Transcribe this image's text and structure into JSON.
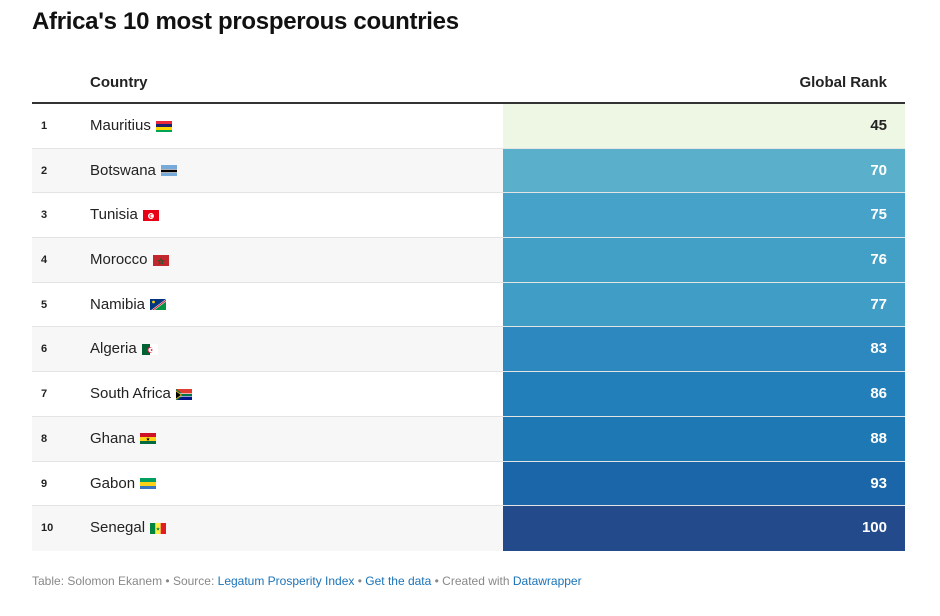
{
  "title": "Africa's 10 most prosperous countries",
  "columns": {
    "country": "Country",
    "rank": "Global Rank"
  },
  "chart_data": {
    "type": "table",
    "columns": [
      "",
      "Country",
      "Global Rank"
    ],
    "rows": [
      {
        "num": "1",
        "country": "Mauritius",
        "flag": "mauritius-flag-icon",
        "rank": "45",
        "color": "#eef6e4",
        "text_color": "#222222"
      },
      {
        "num": "2",
        "country": "Botswana",
        "flag": "botswana-flag-icon",
        "rank": "70",
        "color": "#5ab0cb",
        "text_color": "#ffffff"
      },
      {
        "num": "3",
        "country": "Tunisia",
        "flag": "tunisia-flag-icon",
        "rank": "75",
        "color": "#46a2c9",
        "text_color": "#ffffff"
      },
      {
        "num": "4",
        "country": "Morocco",
        "flag": "morocco-flag-icon",
        "rank": "76",
        "color": "#42a0c7",
        "text_color": "#ffffff"
      },
      {
        "num": "5",
        "country": "Namibia",
        "flag": "namibia-flag-icon",
        "rank": "77",
        "color": "#3f9dc6",
        "text_color": "#ffffff"
      },
      {
        "num": "6",
        "country": "Algeria",
        "flag": "algeria-flag-icon",
        "rank": "83",
        "color": "#2c88bf",
        "text_color": "#ffffff"
      },
      {
        "num": "7",
        "country": "South Africa",
        "flag": "south-africa-flag-icon",
        "rank": "86",
        "color": "#227fb9",
        "text_color": "#ffffff"
      },
      {
        "num": "8",
        "country": "Ghana",
        "flag": "ghana-flag-icon",
        "rank": "88",
        "color": "#1d78b4",
        "text_color": "#ffffff"
      },
      {
        "num": "9",
        "country": "Gabon",
        "flag": "gabon-flag-icon",
        "rank": "93",
        "color": "#1b66a8",
        "text_color": "#ffffff"
      },
      {
        "num": "10",
        "country": "Senegal",
        "flag": "senegal-flag-icon",
        "rank": "100",
        "color": "#234a8b",
        "text_color": "#ffffff"
      }
    ]
  },
  "footer": {
    "prefix": "Table: Solomon Ekanem • Source: ",
    "source_link": "Legatum Prosperity Index",
    "sep1": " • ",
    "data_link": "Get the data",
    "sep2": " • Created with ",
    "tool_link": "Datawrapper"
  }
}
